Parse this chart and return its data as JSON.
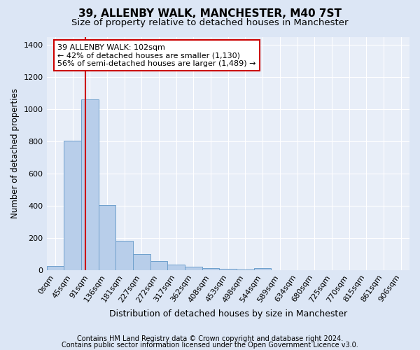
{
  "title1": "39, ALLENBY WALK, MANCHESTER, M40 7ST",
  "title2": "Size of property relative to detached houses in Manchester",
  "xlabel": "Distribution of detached houses by size in Manchester",
  "ylabel": "Number of detached properties",
  "bar_labels": [
    "0sqm",
    "45sqm",
    "91sqm",
    "136sqm",
    "181sqm",
    "227sqm",
    "272sqm",
    "317sqm",
    "362sqm",
    "408sqm",
    "453sqm",
    "498sqm",
    "544sqm",
    "589sqm",
    "634sqm",
    "680sqm",
    "725sqm",
    "770sqm",
    "815sqm",
    "861sqm",
    "906sqm"
  ],
  "bar_values": [
    25,
    805,
    1060,
    405,
    185,
    100,
    55,
    35,
    22,
    12,
    8,
    5,
    12,
    0,
    0,
    0,
    0,
    0,
    0,
    0,
    0
  ],
  "bar_color": "#b8ceea",
  "bar_edge_color": "#6fa0cc",
  "vline_color": "#cc0000",
  "ylim_max": 1450,
  "yticks": [
    0,
    200,
    400,
    600,
    800,
    1000,
    1200,
    1400
  ],
  "annotation_line1": "39 ALLENBY WALK: 102sqm",
  "annotation_line2": "← 42% of detached houses are smaller (1,130)",
  "annotation_line3": "56% of semi-detached houses are larger (1,489) →",
  "annotation_box_color": "#ffffff",
  "annotation_box_edge": "#cc0000",
  "footer1": "Contains HM Land Registry data © Crown copyright and database right 2024.",
  "footer2": "Contains public sector information licensed under the Open Government Licence v3.0.",
  "bg_color": "#dce6f5",
  "plot_bg_color": "#e8eef8",
  "title1_fontsize": 11,
  "title2_fontsize": 9.5,
  "xlabel_fontsize": 9,
  "ylabel_fontsize": 8.5,
  "tick_fontsize": 8,
  "annot_fontsize": 8,
  "footer_fontsize": 7
}
